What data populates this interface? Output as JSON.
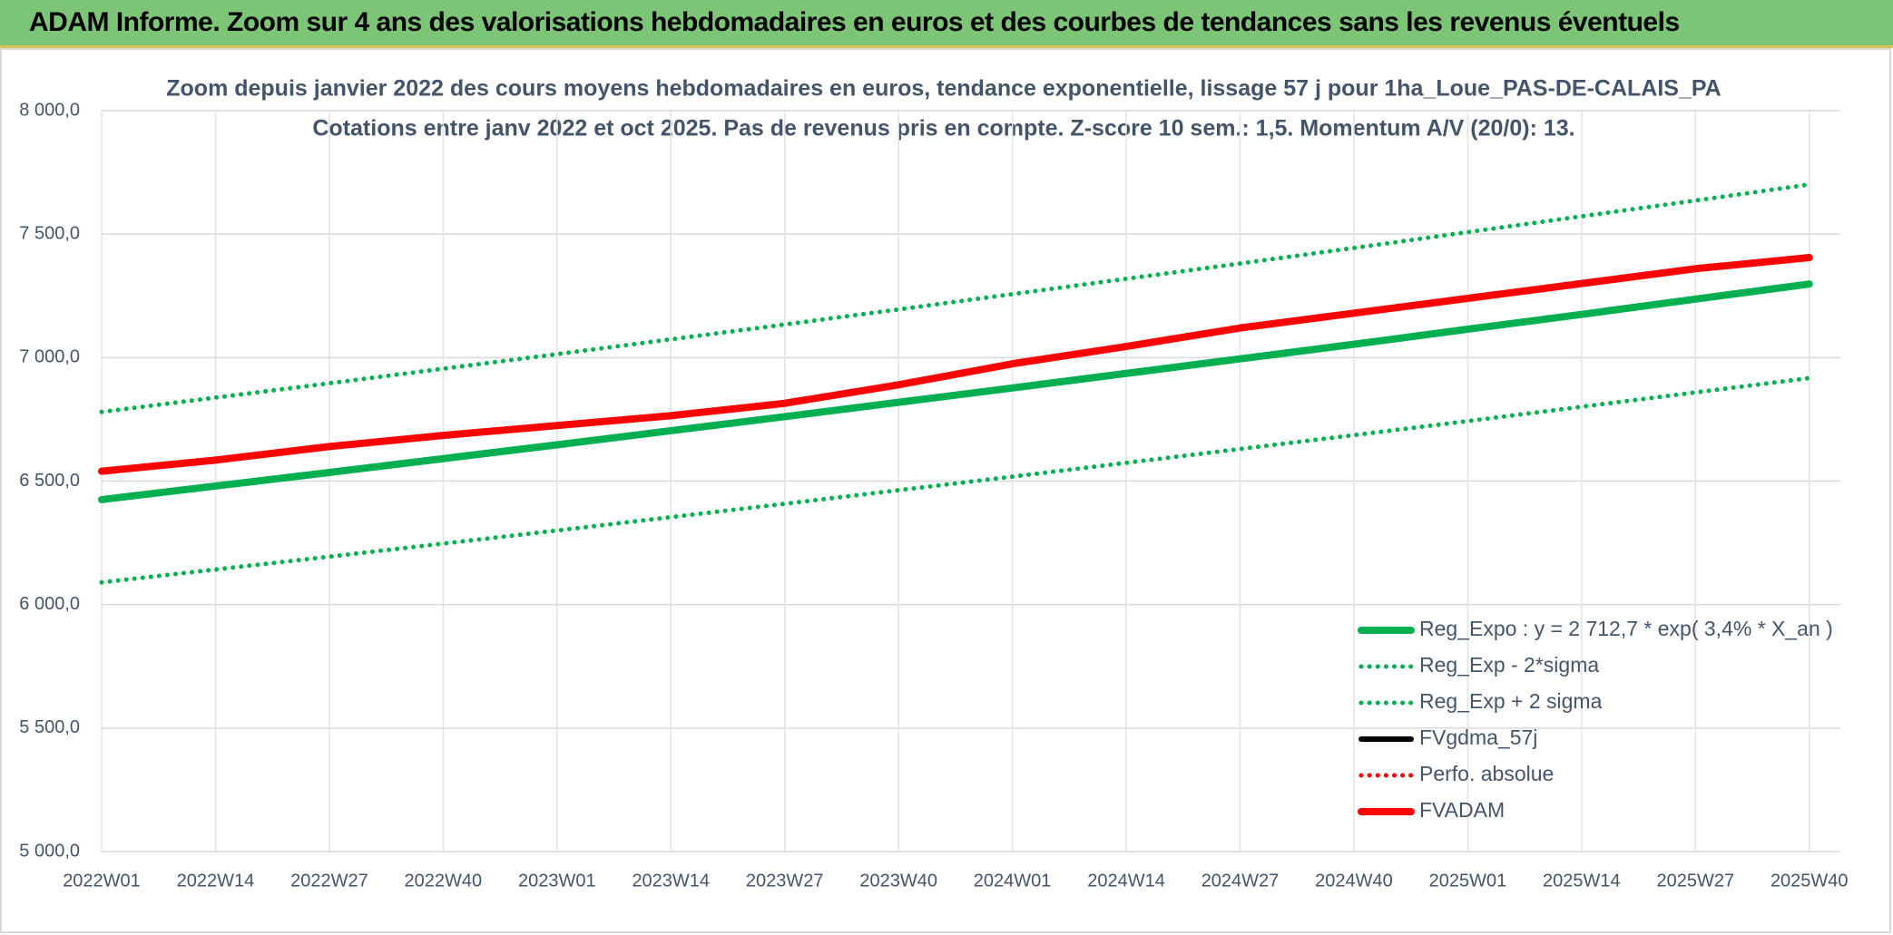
{
  "header": {
    "title": "ADAM Informe. Zoom sur 4 ans des valorisations hebdomadaires en euros et des courbes de tendances sans les revenus éventuels"
  },
  "chart_data": {
    "type": "line",
    "title": "Zoom depuis janvier 2022 des cours moyens hebdomadaires en euros, tendance exponentielle, lissage 57 j pour 1ha_Loue_PAS-DE-CALAIS_PA",
    "subtitle": "Cotations entre janv 2022 et oct 2025. Pas de revenus pris en compte. Z-score 10 sem.: 1,5. Momentum A/V (20/0): 13.",
    "categories": [
      "2022W01",
      "2022W14",
      "2022W27",
      "2022W40",
      "2023W01",
      "2023W14",
      "2023W27",
      "2023W40",
      "2024W01",
      "2024W14",
      "2024W27",
      "2024W40",
      "2025W01",
      "2025W14",
      "2025W27",
      "2025W40"
    ],
    "ylim": [
      5000,
      8000
    ],
    "yticks": [
      {
        "value": 5000,
        "label": "5 000,0"
      },
      {
        "value": 5500,
        "label": "5 500,0"
      },
      {
        "value": 6000,
        "label": "6 000,0"
      },
      {
        "value": 6500,
        "label": "6 500,0"
      },
      {
        "value": 7000,
        "label": "7 000,0"
      },
      {
        "value": 7500,
        "label": "7 500,0"
      },
      {
        "value": 8000,
        "label": "8 000,0"
      }
    ],
    "grid": true,
    "legend": "lower right",
    "series": [
      {
        "name": "Reg_Expo : y = 2 712,7 * exp( 3,4% *  X_an )",
        "color": "#00b050",
        "style": "solid",
        "values": [
          6425,
          6480,
          6535,
          6591,
          6647,
          6704,
          6761,
          6819,
          6877,
          6936,
          6995,
          7054,
          7115,
          7175,
          7237,
          7298
        ]
      },
      {
        "name": "Reg_Exp - 2*sigma",
        "color": "#00b050",
        "style": "dotted",
        "values": [
          6090,
          6142,
          6194,
          6247,
          6300,
          6354,
          6408,
          6463,
          6518,
          6574,
          6630,
          6686,
          6743,
          6801,
          6859,
          6917
        ]
      },
      {
        "name": "Reg_Exp + 2 sigma",
        "color": "#00b050",
        "style": "dotted",
        "values": [
          6780,
          6838,
          6896,
          6955,
          7014,
          7074,
          7134,
          7195,
          7257,
          7319,
          7381,
          7444,
          7508,
          7572,
          7636,
          7701
        ]
      },
      {
        "name": "FVgdma_57j",
        "color": "#000000",
        "style": "solid",
        "values": [
          6540,
          6585,
          6640,
          6685,
          6725,
          6765,
          6815,
          6890,
          6975,
          7045,
          7120,
          7180,
          7240,
          7300,
          7360,
          7405
        ]
      },
      {
        "name": "Perfo. absolue",
        "color": "#ff0000",
        "style": "dotted",
        "values": [
          6540,
          6585,
          6640,
          6685,
          6725,
          6765,
          6815,
          6890,
          6975,
          7045,
          7120,
          7180,
          7240,
          7300,
          7360,
          7405
        ]
      },
      {
        "name": "FVADAM",
        "color": "#ff0000",
        "style": "solid",
        "values": [
          6540,
          6585,
          6640,
          6685,
          6725,
          6765,
          6815,
          6890,
          6975,
          7045,
          7120,
          7180,
          7240,
          7300,
          7360,
          7405
        ]
      }
    ]
  }
}
